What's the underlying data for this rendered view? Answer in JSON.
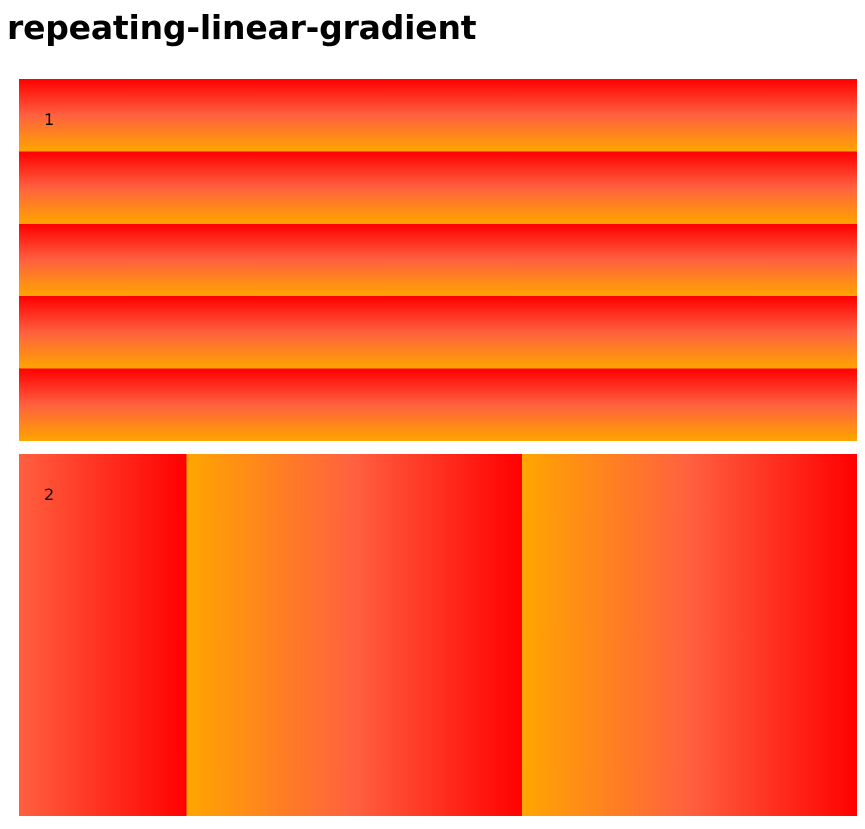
{
  "page": {
    "title": "repeating-linear-gradient"
  },
  "examples": [
    {
      "label": "1",
      "gradient_direction": "vertical",
      "colors": [
        "#ff0000",
        "#ff6040",
        "#ffa500"
      ]
    },
    {
      "label": "2",
      "gradient_direction": "horizontal",
      "colors": [
        "#ffa500",
        "#ff6040",
        "#ff0000"
      ]
    }
  ]
}
